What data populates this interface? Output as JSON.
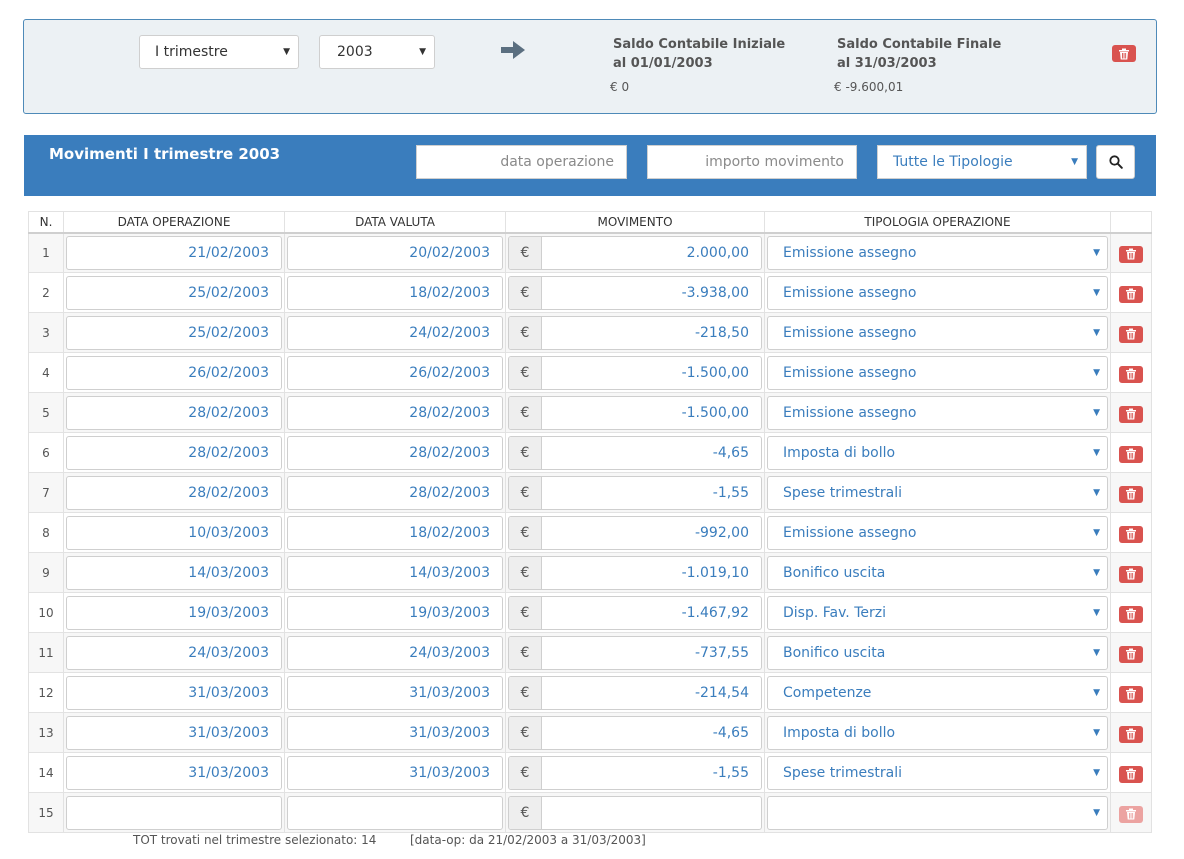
{
  "period": {
    "quarter": "I trimestre",
    "year": "2003",
    "saldo_iniziale_label": "Saldo Contabile Iniziale al 01/01/2003",
    "saldo_iniziale_value": "€ 0",
    "saldo_finale_label": "Saldo Contabile Finale al 31/03/2003",
    "saldo_finale_value": "€ -9.600,01"
  },
  "header": {
    "title": "Movimenti I trimestre 2003",
    "date_placeholder": "data operazione",
    "amount_placeholder": "importo movimento",
    "type_filter": "Tutte le Tipologie"
  },
  "table": {
    "columns": [
      "N.",
      "DATA OPERAZIONE",
      "DATA VALUTA",
      "MOVIMENTO",
      "TIPOLOGIA OPERAZIONE"
    ],
    "currency_symbol": "€",
    "rows": [
      {
        "n": "1",
        "data_op": "21/02/2003",
        "data_val": "20/02/2003",
        "importo": "2.000,00",
        "tipo": "Emissione assegno"
      },
      {
        "n": "2",
        "data_op": "25/02/2003",
        "data_val": "18/02/2003",
        "importo": "-3.938,00",
        "tipo": "Emissione assegno"
      },
      {
        "n": "3",
        "data_op": "25/02/2003",
        "data_val": "24/02/2003",
        "importo": "-218,50",
        "tipo": "Emissione assegno"
      },
      {
        "n": "4",
        "data_op": "26/02/2003",
        "data_val": "26/02/2003",
        "importo": "-1.500,00",
        "tipo": "Emissione assegno"
      },
      {
        "n": "5",
        "data_op": "28/02/2003",
        "data_val": "28/02/2003",
        "importo": "-1.500,00",
        "tipo": "Emissione assegno"
      },
      {
        "n": "6",
        "data_op": "28/02/2003",
        "data_val": "28/02/2003",
        "importo": "-4,65",
        "tipo": "Imposta di bollo"
      },
      {
        "n": "7",
        "data_op": "28/02/2003",
        "data_val": "28/02/2003",
        "importo": "-1,55",
        "tipo": "Spese trimestrali"
      },
      {
        "n": "8",
        "data_op": "10/03/2003",
        "data_val": "18/02/2003",
        "importo": "-992,00",
        "tipo": "Emissione assegno"
      },
      {
        "n": "9",
        "data_op": "14/03/2003",
        "data_val": "14/03/2003",
        "importo": "-1.019,10",
        "tipo": "Bonifico uscita"
      },
      {
        "n": "10",
        "data_op": "19/03/2003",
        "data_val": "19/03/2003",
        "importo": "-1.467,92",
        "tipo": "Disp. Fav. Terzi"
      },
      {
        "n": "11",
        "data_op": "24/03/2003",
        "data_val": "24/03/2003",
        "importo": "-737,55",
        "tipo": "Bonifico uscita"
      },
      {
        "n": "12",
        "data_op": "31/03/2003",
        "data_val": "31/03/2003",
        "importo": "-214,54",
        "tipo": "Competenze"
      },
      {
        "n": "13",
        "data_op": "31/03/2003",
        "data_val": "31/03/2003",
        "importo": "-4,65",
        "tipo": "Imposta di bollo"
      },
      {
        "n": "14",
        "data_op": "31/03/2003",
        "data_val": "31/03/2003",
        "importo": "-1,55",
        "tipo": "Spese trimestrali"
      },
      {
        "n": "15",
        "data_op": "",
        "data_val": "",
        "importo": "",
        "tipo": ""
      }
    ]
  },
  "footer": {
    "tot": "TOT trovati nel trimestre selezionato: 14",
    "range": "[data-op: da 21/02/2003 a 31/03/2003]"
  },
  "colors": {
    "accent": "#3a7dbd",
    "danger": "#d9534f",
    "panel_bg": "#ecf1f4"
  },
  "icons": {
    "arrow": "arrow-right-icon",
    "delete": "trash-icon",
    "search": "search-icon",
    "dropdown": "caret-down-icon"
  }
}
